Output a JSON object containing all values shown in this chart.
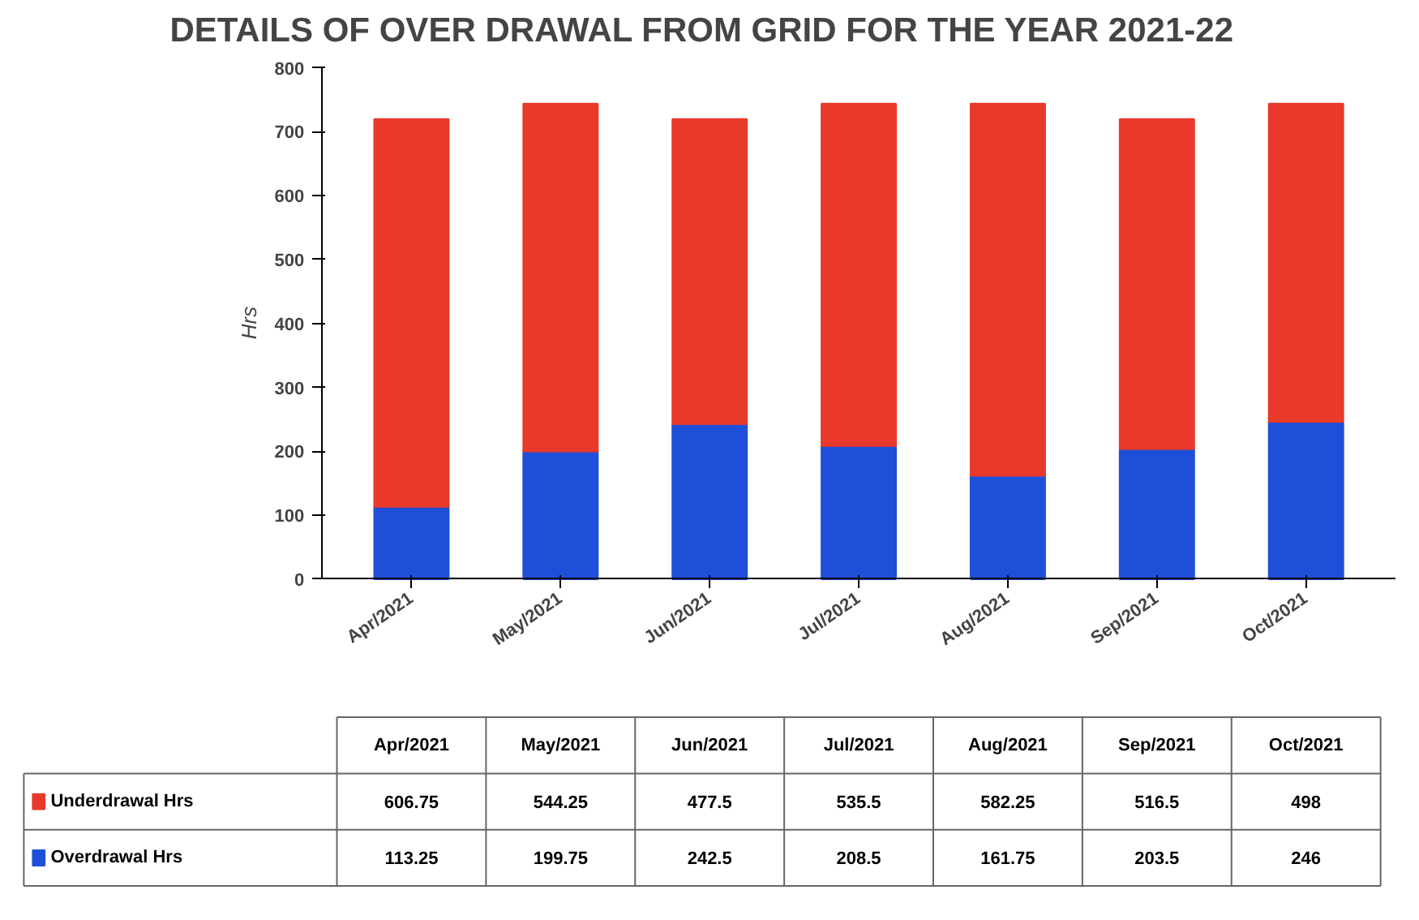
{
  "chart_data": {
    "type": "bar",
    "title": "DETAILS OF OVER DRAWAL FROM GRID FOR THE YEAR 2021-22",
    "ylabel": "Hrs",
    "categories": [
      "Apr/2021",
      "May/2021",
      "Jun/2021",
      "Jul/2021",
      "Aug/2021",
      "Sep/2021",
      "Oct/2021"
    ],
    "stacked": true,
    "series": [
      {
        "name": "Overdrawal Hrs",
        "color": "#1f4fd8",
        "values": [
          113.25,
          199.75,
          242.5,
          208.5,
          161.75,
          203.5,
          246
        ],
        "value_labels": [
          "113.25",
          "199.75",
          "242.5",
          "208.5",
          "161.75",
          "203.5",
          "246"
        ]
      },
      {
        "name": "Underdrawal Hrs",
        "color": "#e8392b",
        "values": [
          606.75,
          544.25,
          477.5,
          535.5,
          582.25,
          516.5,
          498
        ],
        "value_labels": [
          "606.75",
          "544.25",
          "477.5",
          "535.5",
          "582.25",
          "516.5",
          "498"
        ]
      }
    ],
    "ylim": [
      0,
      800
    ],
    "yticks": [
      0,
      100,
      200,
      300,
      400,
      500,
      600,
      700,
      800
    ],
    "legend": "bottom"
  }
}
